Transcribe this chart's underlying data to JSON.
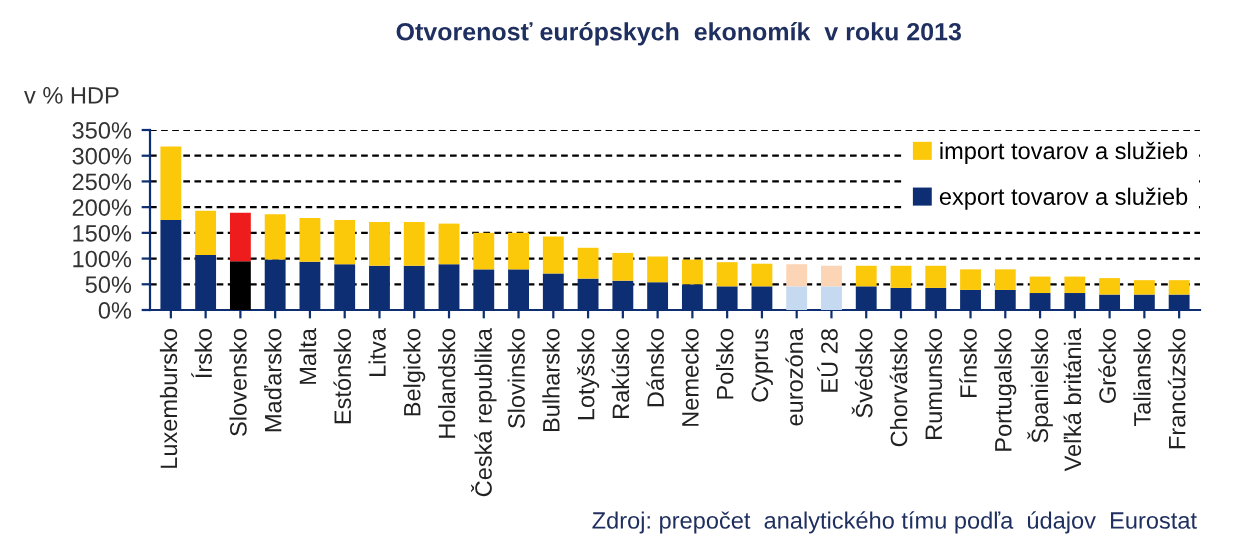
{
  "chart_data": {
    "type": "bar",
    "stacked": true,
    "title": "Otvorenosť európskych  ekonomík  v roku 2013",
    "ylabel": "v % HDP",
    "categories": [
      "Luxembursko",
      "Írsko",
      "Slovensko",
      "Maďarsko",
      "Malta",
      "Estónsko",
      "Litva",
      "Belgicko",
      "Holandsko",
      "Česká republika",
      "Slovinsko",
      "Bulharsko",
      "Lotyšsko",
      "Rakúsko",
      "Dánsko",
      "Nemecko",
      "Poľsko",
      "Cyprus",
      "eurozóna",
      "EÚ 28",
      "Švédsko",
      "Chorvátsko",
      "Rumunsko",
      "Fínsko",
      "Portugalsko",
      "Španielsko",
      "Veľká británia",
      "Grécko",
      "Taliansko",
      "Francúzsko"
    ],
    "series": [
      {
        "name": "export tovarov a služieb",
        "color": "#0d2e73",
        "colors": [
          "#0d2e73",
          "#0d2e73",
          "#000000",
          "#0d2e73",
          "#0d2e73",
          "#0d2e73",
          "#0d2e73",
          "#0d2e73",
          "#0d2e73",
          "#0d2e73",
          "#0d2e73",
          "#0d2e73",
          "#0d2e73",
          "#0d2e73",
          "#0d2e73",
          "#0d2e73",
          "#0d2e73",
          "#0d2e73",
          "#c5d9f1",
          "#c5d9f1",
          "#0d2e73",
          "#0d2e73",
          "#0d2e73",
          "#0d2e73",
          "#0d2e73",
          "#0d2e73",
          "#0d2e73",
          "#0d2e73",
          "#0d2e73",
          "#0d2e73"
        ],
        "values": [
          175,
          107,
          95,
          98,
          94,
          89,
          86,
          86,
          89,
          79,
          79,
          71,
          61,
          57,
          54,
          50,
          46,
          46,
          46,
          46,
          46,
          43,
          43,
          39,
          39,
          33,
          33,
          30,
          30,
          30
        ]
      },
      {
        "name": "import tovarov a služieb",
        "color": "#fcc80a",
        "colors": [
          "#fcc80a",
          "#fcc80a",
          "#ee1c1c",
          "#fcc80a",
          "#fcc80a",
          "#fcc80a",
          "#fcc80a",
          "#fcc80a",
          "#fcc80a",
          "#fcc80a",
          "#fcc80a",
          "#fcc80a",
          "#fcc80a",
          "#fcc80a",
          "#fcc80a",
          "#fcc80a",
          "#fcc80a",
          "#fcc80a",
          "#fbd5b5",
          "#fbd5b5",
          "#fcc80a",
          "#fcc80a",
          "#fcc80a",
          "#fcc80a",
          "#fcc80a",
          "#fcc80a",
          "#fcc80a",
          "#fcc80a",
          "#fcc80a",
          "#fcc80a"
        ],
        "values": [
          143,
          86,
          94,
          88,
          85,
          86,
          85,
          85,
          79,
          71,
          71,
          72,
          60,
          54,
          50,
          48,
          47,
          44,
          43,
          40,
          40,
          43,
          43,
          40,
          40,
          32,
          32,
          32,
          28,
          28
        ]
      }
    ],
    "ylim": [
      0,
      350
    ],
    "yticks": [
      {
        "value": 0,
        "label": "0%"
      },
      {
        "value": 50,
        "label": "50%"
      },
      {
        "value": 100,
        "label": "100%"
      },
      {
        "value": 150,
        "label": "150%"
      },
      {
        "value": 200,
        "label": "200%"
      },
      {
        "value": 250,
        "label": "250%"
      },
      {
        "value": 300,
        "label": "300%"
      },
      {
        "value": 350,
        "label": "350%"
      }
    ],
    "grid": "y",
    "legend": "top right",
    "annotations": [
      "Zdroj: prepočet  analytického tímu podľa  údajov  Eurostat"
    ]
  }
}
